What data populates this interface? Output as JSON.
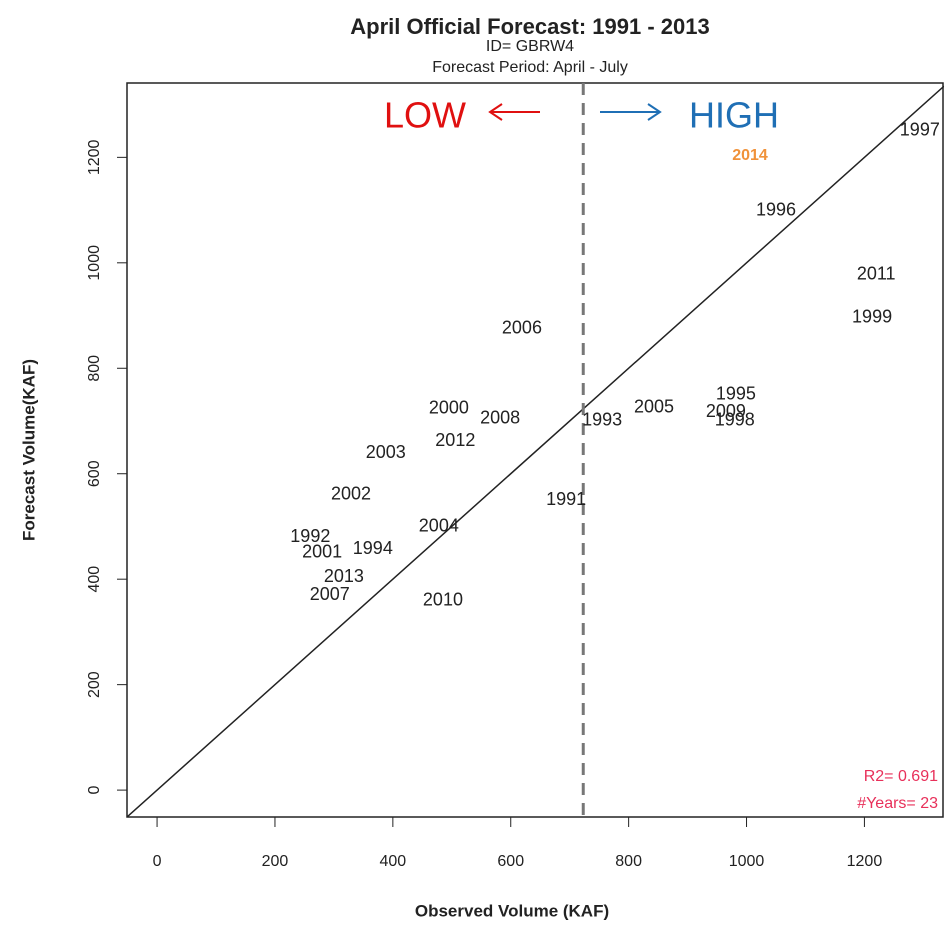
{
  "chart_data": {
    "type": "scatter",
    "title": "April Official Forecast: 1991 - 2013",
    "subtitle": "ID= GBRW4",
    "forecast_period": "Forecast Period:  April - July",
    "x_label": "Observed Volume (KAF)",
    "y_label": "Forecast Volume(KAF)",
    "labels": [
      "1997",
      "1996",
      "2011",
      "1999",
      "2006",
      "1995",
      "2009",
      "1998",
      "2005",
      "1993",
      "2000",
      "2008",
      "2012",
      "2003",
      "2002",
      "1991",
      "2004",
      "1992",
      "2001",
      "1994",
      "2013",
      "2007",
      "2010"
    ],
    "x": [
      1294,
      1050,
      1220,
      1213,
      619,
      982,
      965,
      980,
      843,
      755,
      495,
      582,
      506,
      388,
      329,
      694,
      478,
      260,
      280,
      366,
      317,
      293,
      485
    ],
    "y": [
      1250,
      1099,
      977,
      896,
      875,
      750,
      717,
      700,
      725,
      700,
      723,
      704,
      662,
      639,
      560,
      550,
      499,
      480,
      450,
      457,
      404,
      370,
      359
    ],
    "xlim": [
      -51,
      1335
    ],
    "ylim": [
      -51,
      1341
    ],
    "xticks": [
      0,
      200,
      400,
      600,
      800,
      1000,
      1200
    ],
    "yticks": [
      0,
      200,
      400,
      600,
      800,
      1000,
      1200
    ],
    "identity_line": true,
    "reference_x": 723,
    "reference_color": "#777777",
    "annotations": {
      "low": "LOW",
      "high": "HIGH",
      "year": "2014",
      "r2": "R2= 0.691",
      "years": "#Years= 23"
    }
  }
}
